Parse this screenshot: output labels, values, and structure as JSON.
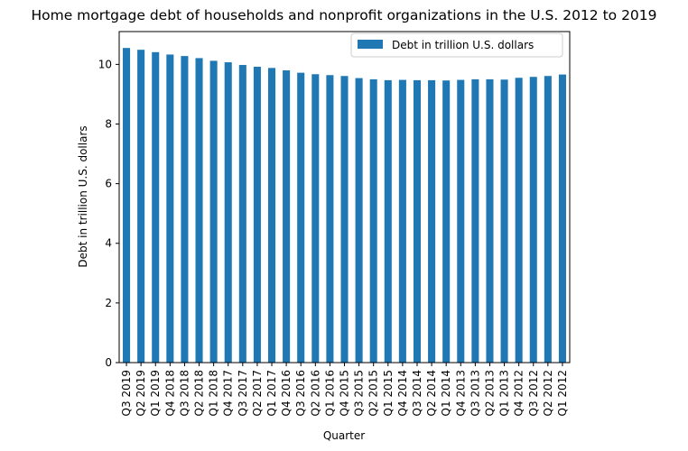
{
  "chart_data": {
    "type": "bar",
    "title": "Home mortgage debt of households and nonprofit organizations in the U.S. 2012 to 2019",
    "xlabel": "Quarter",
    "ylabel": "Debt in trillion U.S. dollars",
    "ylim": [
      0,
      11.1
    ],
    "yticks": [
      0,
      2,
      4,
      6,
      8,
      10
    ],
    "grid": false,
    "legend_position": "top-right",
    "categories": [
      "Q3 2019",
      "Q2 2019",
      "Q1 2019",
      "Q4 2018",
      "Q3 2018",
      "Q2 2018",
      "Q1 2018",
      "Q4 2017",
      "Q3 2017",
      "Q2 2017",
      "Q1 2017",
      "Q4 2016",
      "Q3 2016",
      "Q2 2016",
      "Q1 2016",
      "Q4 2015",
      "Q3 2015",
      "Q2 2015",
      "Q1 2015",
      "Q4 2014",
      "Q3 2014",
      "Q2 2014",
      "Q1 2014",
      "Q4 2013",
      "Q3 2013",
      "Q2 2013",
      "Q1 2013",
      "Q4 2012",
      "Q3 2012",
      "Q2 2012",
      "Q1 2012"
    ],
    "series": [
      {
        "name": "Debt in trillion U.S. dollars",
        "color": "#1f77b4",
        "values": [
          10.55,
          10.49,
          10.41,
          10.33,
          10.28,
          10.21,
          10.12,
          10.07,
          9.98,
          9.92,
          9.88,
          9.8,
          9.72,
          9.67,
          9.64,
          9.61,
          9.54,
          9.5,
          9.47,
          9.48,
          9.47,
          9.47,
          9.46,
          9.48,
          9.5,
          9.5,
          9.49,
          9.55,
          9.58,
          9.61,
          9.66
        ]
      }
    ]
  }
}
